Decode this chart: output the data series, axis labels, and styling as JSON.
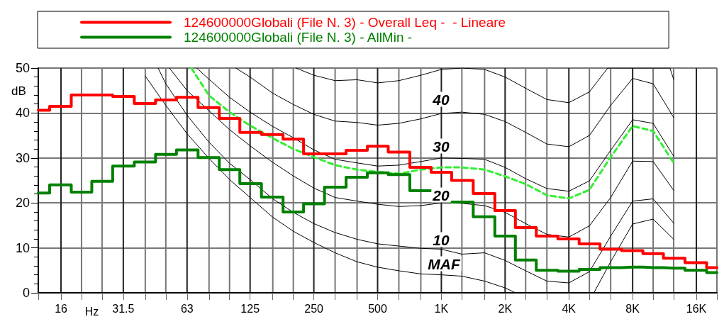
{
  "chart_data": {
    "type": "step",
    "xlabel": "Hz",
    "ylabel": "dB",
    "log": "x",
    "grid": true,
    "legend": "top",
    "marker": "none",
    "xlim": [
      12.5,
      20000
    ],
    "ylim": [
      0,
      50
    ],
    "yticks": [
      0,
      10,
      20,
      30,
      40,
      50
    ],
    "xticks": [
      {
        "value": 12.5,
        "label": null
      },
      {
        "value": 16,
        "label": "16"
      },
      {
        "value": 20,
        "label": null
      },
      {
        "value": 25,
        "label": null
      },
      {
        "value": 31.5,
        "label": "31.5"
      },
      {
        "value": 40,
        "label": null
      },
      {
        "value": 50,
        "label": null
      },
      {
        "value": 63,
        "label": "63"
      },
      {
        "value": 80,
        "label": null
      },
      {
        "value": 100,
        "label": null
      },
      {
        "value": 125,
        "label": "125"
      },
      {
        "value": 160,
        "label": null
      },
      {
        "value": 200,
        "label": null
      },
      {
        "value": 250,
        "label": "250"
      },
      {
        "value": 315,
        "label": null
      },
      {
        "value": 400,
        "label": null
      },
      {
        "value": 500,
        "label": "500"
      },
      {
        "value": 630,
        "label": null
      },
      {
        "value": 800,
        "label": null
      },
      {
        "value": 1000,
        "label": "1K"
      },
      {
        "value": 1250,
        "label": null
      },
      {
        "value": 1600,
        "label": null
      },
      {
        "value": 2000,
        "label": "2K"
      },
      {
        "value": 2500,
        "label": null
      },
      {
        "value": 3150,
        "label": null
      },
      {
        "value": 4000,
        "label": "4K"
      },
      {
        "value": 5000,
        "label": null
      },
      {
        "value": 6300,
        "label": null
      },
      {
        "value": 8000,
        "label": "8K"
      },
      {
        "value": 10000,
        "label": null
      },
      {
        "value": 12500,
        "label": null
      },
      {
        "value": 16000,
        "label": "16K"
      },
      {
        "value": 20000,
        "label": null
      }
    ],
    "x": [
      12.5,
      16,
      20,
      25,
      31.5,
      40,
      50,
      63,
      80,
      100,
      125,
      160,
      200,
      250,
      315,
      400,
      500,
      630,
      800,
      1000,
      1250,
      1600,
      2000,
      2500,
      3150,
      4000,
      5000,
      6300,
      8000,
      10000,
      12500,
      16000,
      20000
    ],
    "series": [
      {
        "name": "124600000Globali (File N. 3) - Overall Leq -  - Lineare",
        "color": "#ff0000",
        "values": [
          40.6,
          41.5,
          44.0,
          44.0,
          43.7,
          42.1,
          42.9,
          43.5,
          41.2,
          38.8,
          35.7,
          35.2,
          34.2,
          30.9,
          30.9,
          31.7,
          32.6,
          31.3,
          27.9,
          26.8,
          25.0,
          22.1,
          18.3,
          14.5,
          12.6,
          12.0,
          10.9,
          9.7,
          9.4,
          8.7,
          7.7,
          6.7,
          5.6
        ]
      },
      {
        "name": "124600000Globali (File N. 3) - AllMin -",
        "color": "#008000",
        "values": [
          22.2,
          24.0,
          22.4,
          24.8,
          28.2,
          29.1,
          30.8,
          31.8,
          30.1,
          27.4,
          24.3,
          21.3,
          18.0,
          19.8,
          23.5,
          25.7,
          26.7,
          26.3,
          22.7,
          null,
          20.2,
          16.9,
          12.6,
          7.3,
          5.0,
          4.8,
          5.2,
          5.6,
          5.7,
          5.6,
          5.5,
          5.0,
          4.5
        ]
      },
      {
        "type": "line",
        "color": "#33ee33",
        "line_style": "dashed",
        "x": [
          66,
          80,
          100,
          125,
          160,
          200,
          250,
          315,
          400,
          500,
          630,
          800,
          1000,
          1250,
          1600,
          2000,
          2500,
          3150,
          4000,
          5000,
          6300,
          8000,
          10000,
          12500
        ],
        "values": [
          50,
          43.9,
          40.2,
          37.2,
          34.4,
          32.0,
          30.2,
          28.4,
          27.4,
          26.9,
          26.5,
          27.4,
          27.9,
          27.9,
          27.4,
          25.9,
          24.2,
          21.7,
          21.0,
          22.9,
          30.2,
          37.1,
          36.0,
          28.9
        ]
      },
      {
        "type": "line",
        "color": "#000000",
        "x": [
          40,
          50,
          63,
          80,
          100,
          125,
          160,
          200,
          250,
          315,
          400,
          500,
          630,
          800,
          1000,
          1250,
          1600,
          2000,
          2240,
          4000,
          5250,
          6300,
          8000,
          10000,
          12500
        ],
        "values": [
          48.2,
          41.7,
          35.4,
          29.9,
          25.2,
          21.2,
          16.8,
          13.7,
          11.2,
          8.9,
          6.9,
          5.7,
          4.9,
          4.2,
          4.0,
          3.7,
          2.6,
          1.1,
          0,
          null,
          0,
          6.9,
          15.3,
          16.4,
          11.9
        ]
      },
      {
        "type": "line",
        "color": "#000000",
        "x": [
          46,
          50,
          63,
          80,
          100,
          125,
          160,
          200,
          250,
          315,
          400,
          500,
          630,
          800,
          1000,
          1250,
          1600,
          2000,
          2500,
          3150,
          4000,
          5000,
          6300,
          8000,
          10000,
          12500
        ],
        "values": [
          50,
          46.5,
          39.5,
          33.5,
          28.8,
          25.2,
          20.9,
          17.9,
          15.4,
          13.4,
          11.9,
          10.9,
          10.4,
          9.9,
          9.7,
          8.6,
          8.9,
          7.2,
          4.9,
          2.6,
          2.2,
          4.7,
          12.6,
          20.4,
          20.9,
          15.5
        ]
      },
      {
        "type": "line",
        "color": "#000000",
        "x": [
          52,
          63,
          80,
          100,
          125,
          160,
          200,
          250,
          315,
          400,
          500,
          630,
          800,
          1000,
          1250,
          1600,
          2000,
          2500,
          3150,
          4000,
          5000,
          6300,
          8000,
          10000,
          12500
        ],
        "values": [
          50,
          45.0,
          40.5,
          36.3,
          32.7,
          29.0,
          26.0,
          23.3,
          21.2,
          20.4,
          19.7,
          19.2,
          19.4,
          20.0,
          19.9,
          19.4,
          17.9,
          15.4,
          13.0,
          12.4,
          14.9,
          21.2,
          29.3,
          29.2,
          22.8
        ]
      },
      {
        "type": "line",
        "color": "#000000",
        "x": [
          70,
          80,
          100,
          125,
          160,
          200,
          250,
          315,
          400,
          500,
          630,
          800,
          1000,
          1250,
          1600,
          2000,
          2500,
          3150,
          4000,
          5000,
          6300,
          8000,
          10000,
          12500
        ],
        "values": [
          50,
          47.5,
          43.5,
          40.2,
          37.0,
          34.5,
          31.8,
          29.7,
          28.9,
          28.2,
          28.4,
          29.2,
          30.0,
          29.9,
          29.7,
          27.9,
          25.4,
          23.2,
          22.6,
          24.9,
          31.7,
          38.5,
          37.7,
          30.4
        ]
      },
      {
        "type": "line",
        "color": "#000000",
        "x": [
          107,
          125,
          160,
          200,
          250,
          315,
          400,
          500,
          630,
          800,
          1000,
          1250,
          1600,
          2000,
          2500,
          3150,
          4000,
          5000,
          6300,
          8000,
          10000,
          12500
        ],
        "values": [
          50,
          48.0,
          44.4,
          41.9,
          39.7,
          38.2,
          37.9,
          37.3,
          37.7,
          38.7,
          39.9,
          40.2,
          39.7,
          38.1,
          35.7,
          33.1,
          32.5,
          35.0,
          41.7,
          47.7,
          46.5,
          39.0
        ]
      },
      {
        "type": "line",
        "color": "#000000",
        "x": [
          206,
          250,
          315,
          400,
          500,
          630,
          800,
          1000,
          1250,
          1600,
          2000,
          2500,
          3150,
          4000,
          5000,
          6100,
          12000,
          12500
        ],
        "values": [
          50,
          48.4,
          47.2,
          47.4,
          46.7,
          47.2,
          48.4,
          49.7,
          50,
          49.7,
          48.0,
          45.5,
          43.0,
          42.3,
          44.7,
          50,
          50,
          47.5
        ]
      }
    ],
    "annotations": [
      "40",
      "30",
      "20",
      "10",
      "MAF"
    ]
  }
}
